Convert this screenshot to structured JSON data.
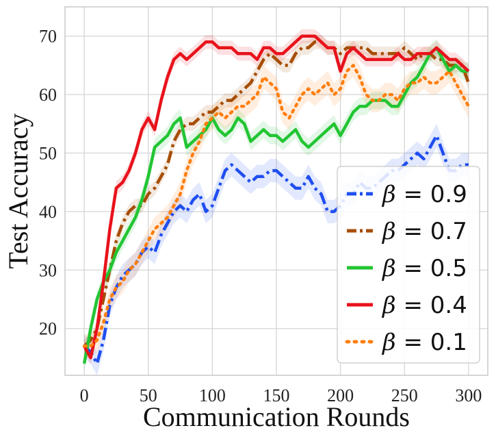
{
  "chart_data": {
    "type": "line",
    "title": "",
    "xlabel": "Communication Rounds",
    "ylabel": "Test Accuracy",
    "xlim": [
      -15,
      315
    ],
    "ylim": [
      12,
      75
    ],
    "xticks": [
      0,
      50,
      100,
      150,
      200,
      250,
      300
    ],
    "yticks": [
      20,
      30,
      40,
      50,
      60,
      70
    ],
    "grid": true,
    "legend_position": "bottom-right",
    "series": [
      {
        "name": "β = 0.9",
        "beta": "0.9",
        "color": "#1f4ef0",
        "style": "dashdot",
        "band": 2.0,
        "x": [
          0,
          5,
          10,
          15,
          20,
          25,
          30,
          35,
          40,
          45,
          50,
          55,
          60,
          65,
          70,
          75,
          80,
          85,
          90,
          95,
          100,
          105,
          110,
          115,
          120,
          125,
          130,
          135,
          140,
          145,
          150,
          155,
          160,
          165,
          170,
          175,
          180,
          185,
          190,
          195,
          200,
          205,
          210,
          215,
          220,
          225,
          230,
          235,
          240,
          245,
          250,
          255,
          260,
          265,
          270,
          275,
          280,
          285,
          290,
          295,
          300
        ],
        "y": [
          17,
          16,
          14,
          18,
          24,
          27,
          29,
          30,
          31,
          33,
          34,
          33,
          36,
          38,
          40,
          41,
          40,
          42,
          43,
          40,
          41,
          44,
          47,
          48,
          47,
          46,
          45,
          46,
          46,
          47,
          47,
          46,
          45,
          44,
          44,
          46,
          44,
          43,
          40,
          40,
          41,
          43,
          43,
          45,
          44,
          44,
          45,
          46,
          47,
          47,
          48,
          49,
          50,
          49,
          51,
          53,
          50,
          47,
          47,
          48,
          48
        ]
      },
      {
        "name": "β = 0.7",
        "beta": "0.7",
        "color": "#a64d00",
        "style": "dashdot",
        "band": 1.2,
        "x": [
          0,
          5,
          10,
          15,
          20,
          25,
          30,
          35,
          40,
          45,
          50,
          55,
          60,
          65,
          70,
          75,
          80,
          85,
          90,
          95,
          100,
          105,
          110,
          115,
          120,
          125,
          130,
          135,
          140,
          145,
          150,
          155,
          160,
          165,
          170,
          175,
          180,
          185,
          190,
          195,
          200,
          205,
          210,
          215,
          220,
          225,
          230,
          235,
          240,
          245,
          250,
          255,
          260,
          265,
          270,
          275,
          280,
          285,
          290,
          295,
          300
        ],
        "y": [
          17,
          18,
          20,
          25,
          30,
          35,
          38,
          40,
          41,
          41,
          43,
          44,
          46,
          48,
          52,
          54,
          55,
          55,
          56,
          57,
          57,
          58,
          59,
          59,
          60,
          61,
          62,
          64,
          66,
          67,
          66,
          65,
          65,
          67,
          68,
          68,
          69,
          69,
          68,
          68,
          67,
          68,
          68,
          68,
          68,
          67,
          67,
          67,
          67,
          67,
          68,
          67,
          66,
          67,
          67,
          66,
          66,
          65,
          65,
          65,
          62
        ]
      },
      {
        "name": "β = 0.5",
        "beta": "0.5",
        "color": "#22c533",
        "style": "solid",
        "band": 1.5,
        "x": [
          0,
          5,
          10,
          15,
          20,
          25,
          30,
          35,
          40,
          45,
          50,
          55,
          60,
          65,
          70,
          75,
          80,
          85,
          90,
          95,
          100,
          105,
          110,
          115,
          120,
          125,
          130,
          135,
          140,
          145,
          150,
          155,
          160,
          165,
          170,
          175,
          180,
          185,
          190,
          195,
          200,
          205,
          210,
          215,
          220,
          225,
          230,
          235,
          240,
          245,
          250,
          255,
          260,
          265,
          270,
          275,
          280,
          285,
          290,
          295,
          300
        ],
        "y": [
          14,
          20,
          25,
          28,
          30,
          33,
          35,
          37,
          39,
          42,
          46,
          51,
          52,
          53,
          55,
          56,
          51,
          52,
          53,
          54,
          56,
          54,
          53,
          54,
          56,
          55,
          52,
          53,
          54,
          53,
          53,
          52,
          53,
          54,
          52,
          51,
          52,
          53,
          54,
          55,
          53,
          55,
          57,
          58,
          58,
          59,
          59,
          59,
          58,
          58,
          60,
          62,
          63,
          65,
          67,
          68,
          66,
          64,
          65,
          64,
          64
        ]
      },
      {
        "name": "β = 0.4",
        "beta": "0.4",
        "color": "#e8121b",
        "style": "solid",
        "band": 1.2,
        "x": [
          0,
          5,
          10,
          15,
          20,
          25,
          30,
          35,
          40,
          45,
          50,
          55,
          60,
          65,
          70,
          75,
          80,
          85,
          90,
          95,
          100,
          105,
          110,
          115,
          120,
          125,
          130,
          135,
          140,
          145,
          150,
          155,
          160,
          165,
          170,
          175,
          180,
          185,
          190,
          195,
          200,
          205,
          210,
          215,
          220,
          225,
          230,
          235,
          240,
          245,
          250,
          255,
          260,
          265,
          270,
          275,
          280,
          285,
          290,
          295,
          300
        ],
        "y": [
          17,
          15,
          20,
          28,
          37,
          44,
          45,
          47,
          50,
          54,
          56,
          54,
          59,
          63,
          66,
          67,
          66,
          67,
          68,
          69,
          69,
          68,
          68,
          68,
          67,
          67,
          67,
          66,
          68,
          68,
          67,
          67,
          68,
          69,
          70,
          70,
          70,
          69,
          68,
          68,
          64,
          67,
          68,
          67,
          66,
          66,
          66,
          66,
          66,
          67,
          66,
          66,
          67,
          67,
          67,
          68,
          67,
          66,
          66,
          65,
          64
        ]
      },
      {
        "name": "β = 0.1",
        "beta": "0.1",
        "color": "#ff7f0e",
        "style": "dotted",
        "band": 2.0,
        "x": [
          0,
          5,
          10,
          15,
          20,
          25,
          30,
          35,
          40,
          45,
          50,
          55,
          60,
          65,
          70,
          75,
          80,
          85,
          90,
          95,
          100,
          105,
          110,
          115,
          120,
          125,
          130,
          135,
          140,
          145,
          150,
          155,
          160,
          165,
          170,
          175,
          180,
          185,
          190,
          195,
          200,
          205,
          210,
          215,
          220,
          225,
          230,
          235,
          240,
          245,
          250,
          255,
          260,
          265,
          270,
          275,
          280,
          285,
          290,
          295,
          300
        ],
        "y": [
          17,
          17,
          18,
          21,
          25,
          27,
          28,
          30,
          31,
          33,
          35,
          37,
          38,
          39,
          41,
          43,
          47,
          50,
          52,
          55,
          56,
          57,
          56,
          57,
          58,
          58,
          59,
          60,
          63,
          62,
          61,
          57,
          56,
          58,
          60,
          61,
          60,
          61,
          62,
          60,
          61,
          64,
          65,
          63,
          60,
          59,
          59,
          60,
          60,
          59,
          61,
          62,
          62,
          63,
          62,
          62,
          63,
          64,
          62,
          60,
          58
        ]
      }
    ]
  }
}
